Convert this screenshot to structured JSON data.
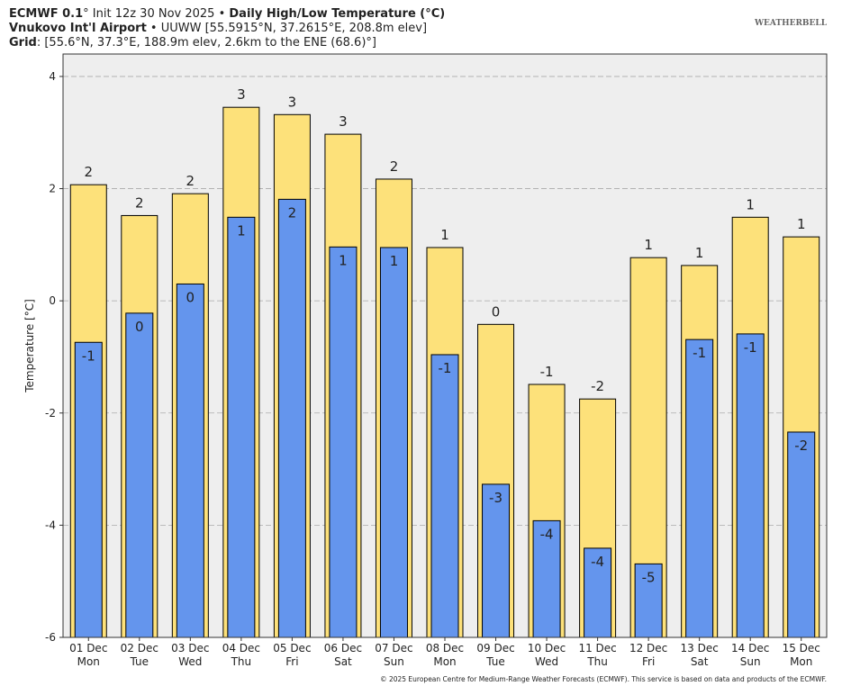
{
  "chart_data": {
    "type": "bar",
    "header": [
      [
        {
          "text": "ECMWF 0.1",
          "bold": true
        },
        {
          "text": "° Init 12z 30 Nov 2025 • ",
          "bold": false
        },
        {
          "text": "Daily High/Low Temperature (°C)",
          "bold": true
        }
      ],
      [
        {
          "text": "Vnukovo Int'l Airport",
          "bold": true
        },
        {
          "text": " • UUWW [55.5915°N, 37.2615°E, 208.8m elev]",
          "bold": false
        }
      ],
      [
        {
          "text": "Grid",
          "bold": true
        },
        {
          "text": ": [55.6°N, 37.3°E, 188.9m elev, 2.6km to the ENE (68.6)°]",
          "bold": false
        }
      ]
    ],
    "logo": "WEATHERBELL",
    "y_label": "Temperature [°C]",
    "footer": "© 2025 European Centre for Medium-Range Weather Forecasts (ECMWF). This service is based on data and products of the ECMWF.",
    "categories": [
      "01 Dec",
      "02 Dec",
      "03 Dec",
      "04 Dec",
      "05 Dec",
      "06 Dec",
      "07 Dec",
      "08 Dec",
      "09 Dec",
      "10 Dec",
      "11 Dec",
      "12 Dec",
      "13 Dec",
      "14 Dec",
      "15 Dec"
    ],
    "weekdays": [
      "Mon",
      "Tue",
      "Wed",
      "Thu",
      "Fri",
      "Sat",
      "Sun",
      "Mon",
      "Tue",
      "Wed",
      "Thu",
      "Fri",
      "Sat",
      "Sun",
      "Mon"
    ],
    "series": [
      {
        "color": "#fde17a",
        "values": [
          2.07,
          1.52,
          1.91,
          3.45,
          3.32,
          2.97,
          2.17,
          0.95,
          -0.42,
          -1.49,
          -1.75,
          0.77,
          0.63,
          1.49,
          1.14
        ],
        "value_labels": [
          "2",
          "2",
          "2",
          "3",
          "3",
          "3",
          "2",
          "1",
          "0",
          "-1",
          "-2",
          "1",
          "1",
          "1",
          "1"
        ]
      },
      {
        "color": "#6495ed",
        "values": [
          -0.74,
          -0.22,
          0.3,
          1.49,
          1.81,
          0.96,
          0.95,
          -0.96,
          -3.27,
          -3.92,
          -4.41,
          -4.69,
          -0.69,
          -0.59,
          -2.34
        ],
        "value_labels": [
          "-1",
          "0",
          "0",
          "1",
          "2",
          "1",
          "1",
          "-1",
          "-3",
          "-4",
          "-4",
          "-5",
          "-1",
          "-1",
          "-2"
        ]
      }
    ],
    "ylim": [
      -6,
      4.4
    ],
    "yticks": [
      -6,
      -4,
      -2,
      0,
      2,
      4
    ],
    "grid": true
  }
}
